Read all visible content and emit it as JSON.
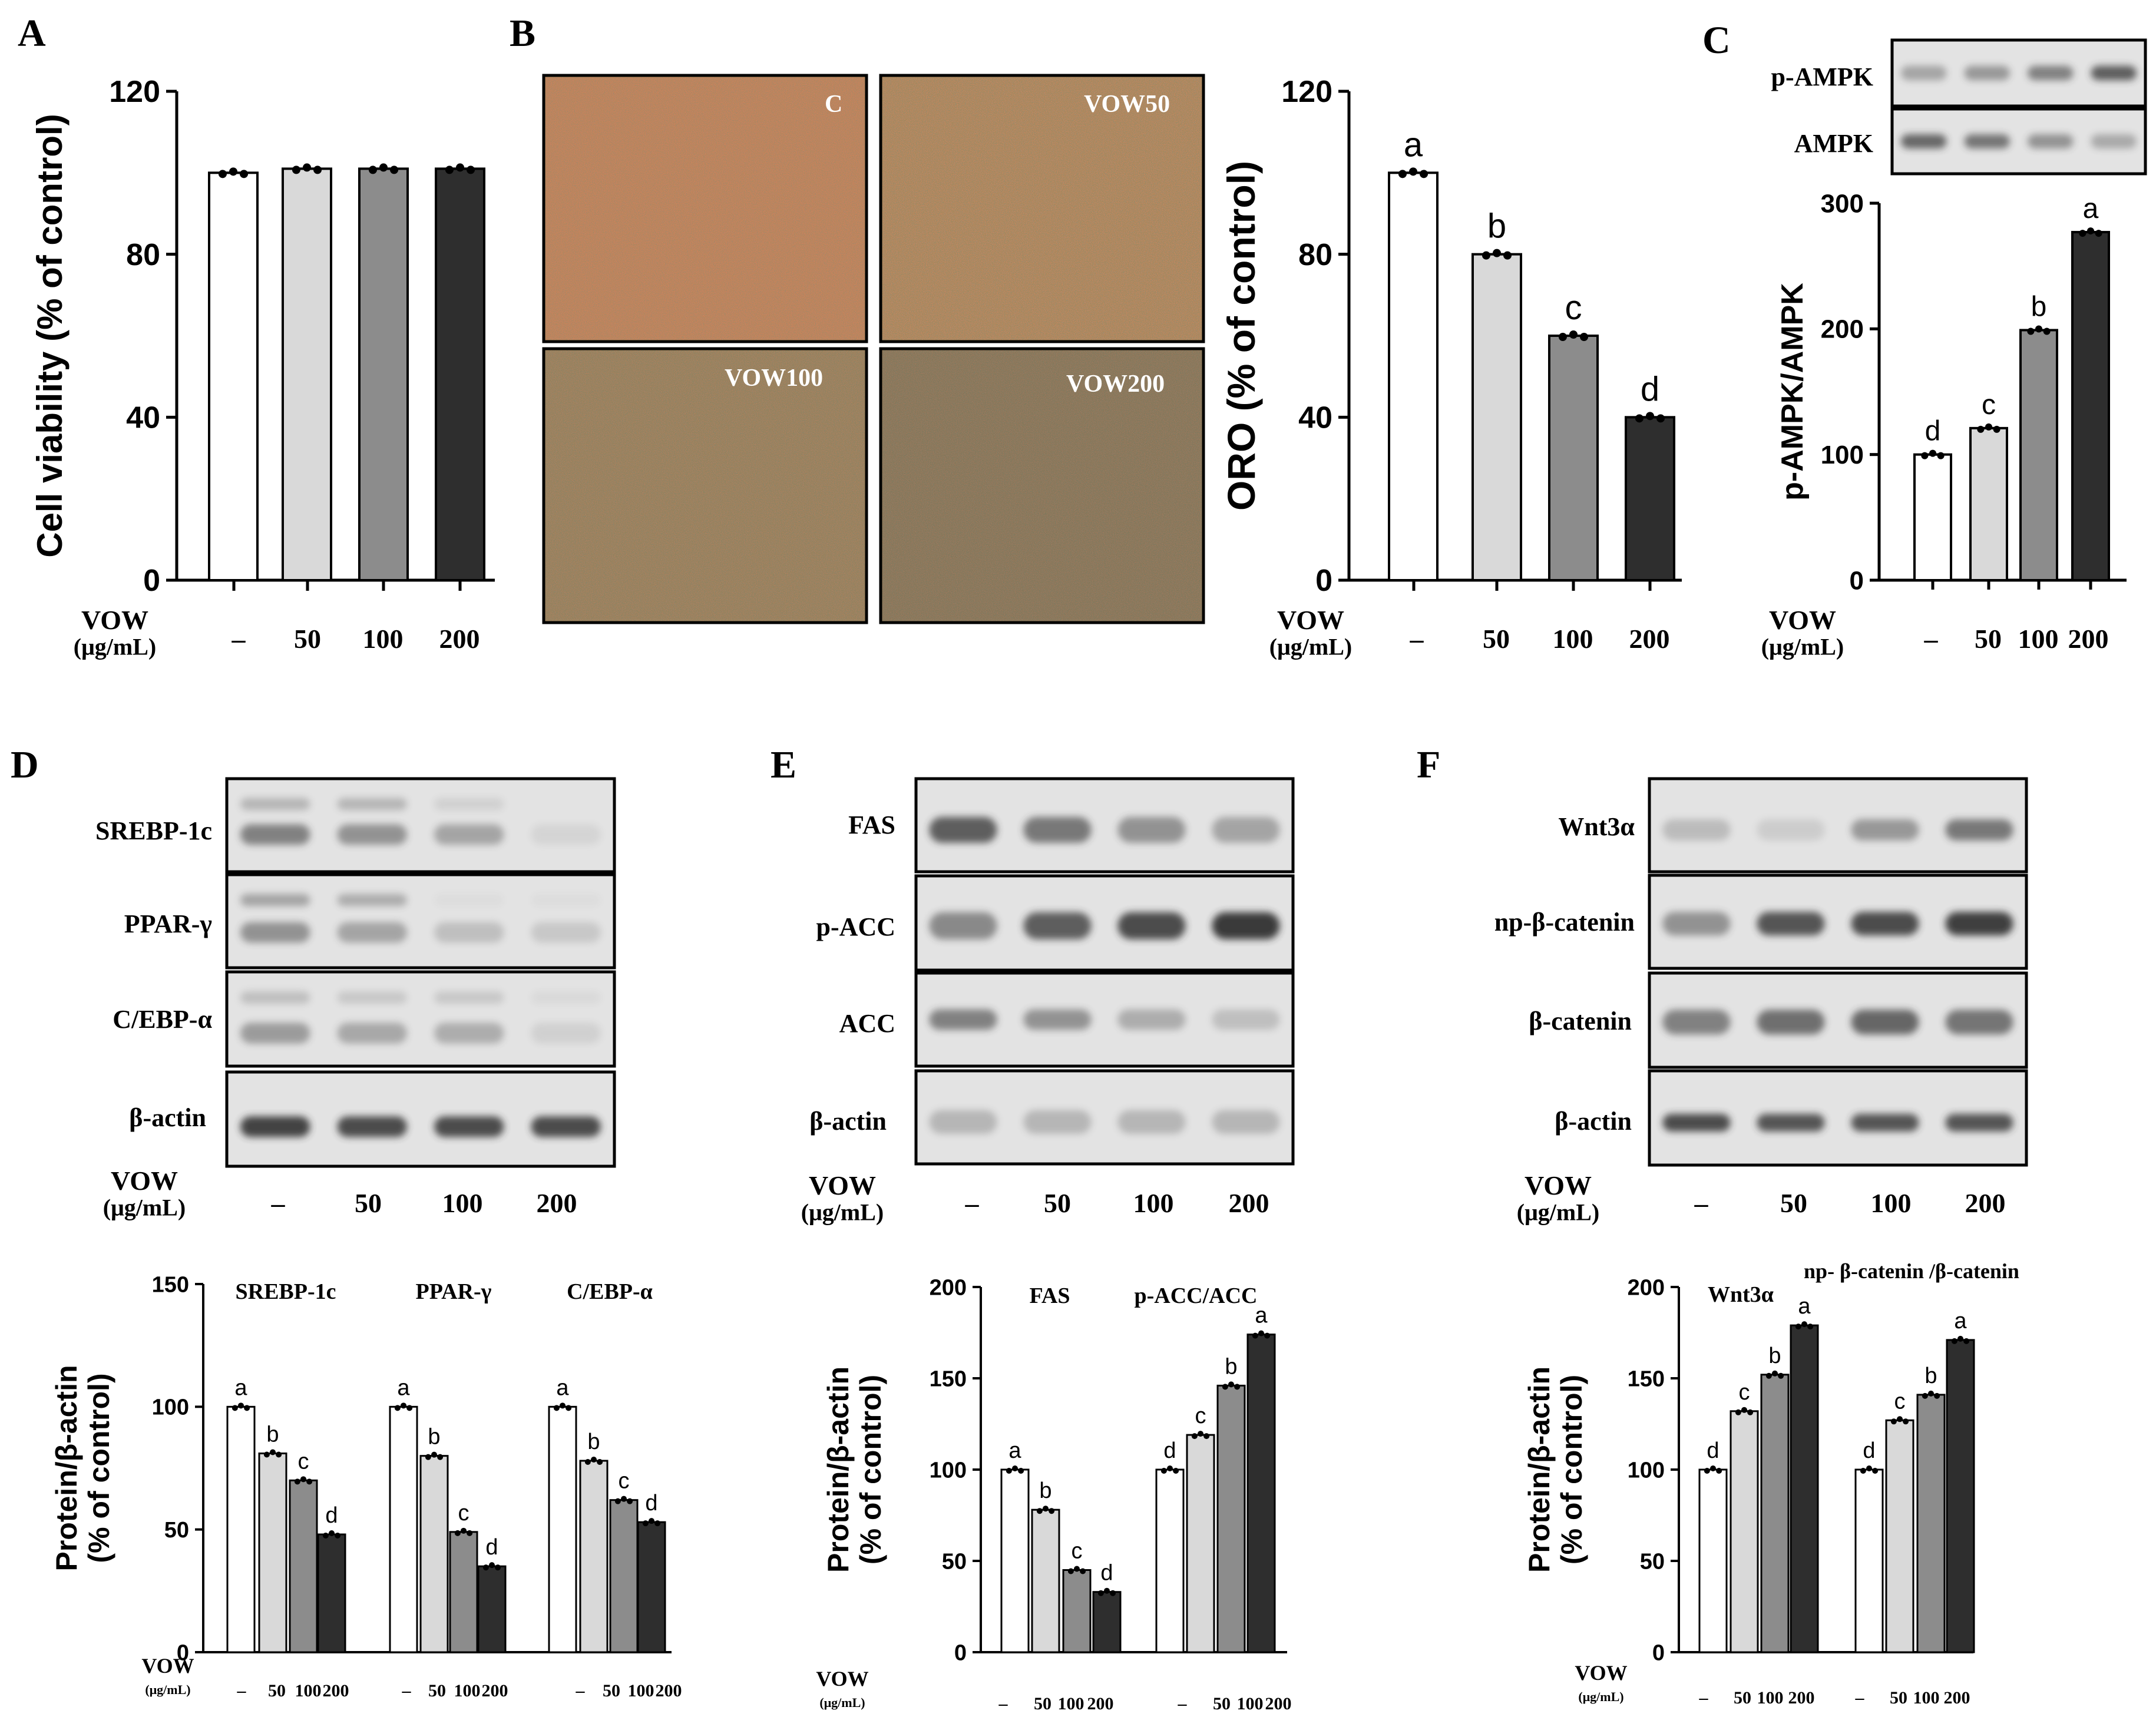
{
  "figure": {
    "dose_header": "VOW",
    "dose_unit": "(μg/mL)",
    "dose_labels": [
      "–",
      "50",
      "100",
      "200"
    ],
    "colors": {
      "c0": "#ffffff",
      "c1": "#d9d9d9",
      "c2": "#8c8c8c",
      "c3": "#2e2e2e",
      "axis": "#000000",
      "blot_bg": "#e3e3e3",
      "blot_band": "#333333"
    }
  },
  "panels": {
    "A": {
      "letter": "A"
    },
    "B": {
      "letter": "B",
      "images": [
        "C",
        "VOW50",
        "VOW100",
        "VOW200"
      ]
    },
    "C": {
      "letter": "C",
      "blots": [
        "p-AMPK",
        "AMPK"
      ]
    },
    "D": {
      "letter": "D",
      "blots": [
        "SREBP-1c",
        "PPAR-γ",
        "C/EBP-α",
        "β-actin"
      ]
    },
    "E": {
      "letter": "E",
      "blots": [
        "FAS",
        "p-ACC",
        "ACC",
        "β-actin"
      ]
    },
    "F": {
      "letter": "F",
      "blots": [
        "Wnt3α",
        "np-β-catenin",
        "β-catenin",
        "β-actin"
      ]
    }
  },
  "chart_data": [
    {
      "id": "A",
      "type": "bar",
      "title": "",
      "xlabel": "VOW (μg/mL)",
      "ylabel": "Cell viability (% of control)",
      "ylim": [
        0,
        120
      ],
      "yticks": [
        "0",
        "40",
        "80",
        "120"
      ],
      "categories": [
        "–",
        "50",
        "100",
        "200"
      ],
      "values": [
        100,
        101,
        101,
        101
      ],
      "letters": [
        "",
        "",
        "",
        ""
      ]
    },
    {
      "id": "B",
      "type": "bar",
      "title": "",
      "xlabel": "VOW (μg/mL)",
      "ylabel": "ORO (% of control)",
      "ylim": [
        0,
        120
      ],
      "yticks": [
        "0",
        "40",
        "80",
        "120"
      ],
      "categories": [
        "–",
        "50",
        "100",
        "200"
      ],
      "values": [
        100,
        80,
        60,
        40
      ],
      "letters": [
        "a",
        "b",
        "c",
        "d"
      ]
    },
    {
      "id": "C",
      "type": "bar",
      "title": "",
      "xlabel": "VOW (μg/mL)",
      "ylabel": "p-AMPK/AMPK",
      "ylim": [
        0,
        300
      ],
      "yticks": [
        "0",
        "100",
        "200",
        "300"
      ],
      "categories": [
        "–",
        "50",
        "100",
        "200"
      ],
      "values": [
        100,
        121,
        199,
        277
      ],
      "letters": [
        "d",
        "c",
        "b",
        "a"
      ]
    },
    {
      "id": "D",
      "type": "bar",
      "title": "",
      "xlabel": "VOW (μg/mL)",
      "ylabel": "Protein/β-actin (% of control)",
      "ylim": [
        0,
        150
      ],
      "yticks": [
        "0",
        "50",
        "100",
        "150"
      ],
      "categories": [
        "–",
        "50",
        "100",
        "200"
      ],
      "groups": [
        "SREBP-1c",
        "PPAR-γ",
        "C/EBP-α"
      ],
      "series": [
        {
          "name": "SREBP-1c",
          "values": [
            100,
            81,
            70,
            48
          ],
          "letters": [
            "a",
            "b",
            "c",
            "d"
          ]
        },
        {
          "name": "PPAR-γ",
          "values": [
            100,
            80,
            49,
            35
          ],
          "letters": [
            "a",
            "b",
            "c",
            "d"
          ]
        },
        {
          "name": "C/EBP-α",
          "values": [
            100,
            78,
            62,
            53
          ],
          "letters": [
            "a",
            "b",
            "c",
            "d"
          ]
        }
      ]
    },
    {
      "id": "E",
      "type": "bar",
      "title": "",
      "xlabel": "VOW (μg/mL)",
      "ylabel": "Protein/β-actin (% of control)",
      "ylim": [
        0,
        200
      ],
      "yticks": [
        "0",
        "50",
        "100",
        "150",
        "200"
      ],
      "categories": [
        "–",
        "50",
        "100",
        "200"
      ],
      "groups": [
        "FAS",
        "p-ACC/ACC"
      ],
      "series": [
        {
          "name": "FAS",
          "values": [
            100,
            78,
            45,
            33
          ],
          "letters": [
            "a",
            "b",
            "c",
            "d"
          ]
        },
        {
          "name": "p-ACC/ACC",
          "values": [
            100,
            119,
            146,
            174
          ],
          "letters": [
            "d",
            "c",
            "b",
            "a"
          ]
        }
      ]
    },
    {
      "id": "F",
      "type": "bar",
      "title": "",
      "xlabel": "VOW (μg/mL)",
      "ylabel": "Protein/β-actin (% of control)",
      "ylim": [
        0,
        200
      ],
      "yticks": [
        "0",
        "50",
        "100",
        "150",
        "200"
      ],
      "categories": [
        "–",
        "50",
        "100",
        "200"
      ],
      "groups": [
        "Wnt3α",
        "np- β-catenin /β-catenin"
      ],
      "series": [
        {
          "name": "Wnt3α",
          "values": [
            100,
            132,
            152,
            179
          ],
          "letters": [
            "d",
            "c",
            "b",
            "a"
          ]
        },
        {
          "name": "np- β-catenin /β-catenin",
          "values": [
            100,
            127,
            141,
            171
          ],
          "letters": [
            "d",
            "c",
            "b",
            "a"
          ]
        }
      ]
    }
  ]
}
